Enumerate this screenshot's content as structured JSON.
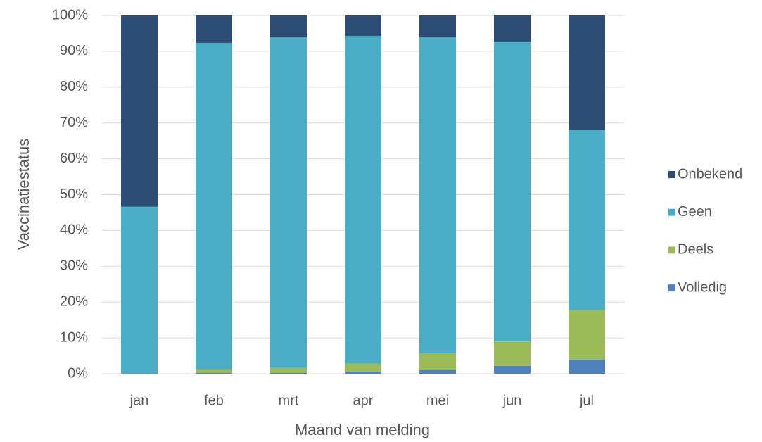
{
  "chart_data": {
    "type": "stacked_bar",
    "x_label": "Maand van melding",
    "y_label": "Vaccinatiestatus",
    "categories": [
      "jan",
      "feb",
      "mrt",
      "apr",
      "mei",
      "jun",
      "jul"
    ],
    "series": [
      {
        "name": "Volledig",
        "color": "#4f81bd",
        "values": [
          0,
          0.2,
          0.2,
          0.6,
          1.0,
          2.2,
          3.9
        ]
      },
      {
        "name": "Deels",
        "color": "#9bbb59",
        "values": [
          0,
          1.0,
          1.4,
          2.2,
          4.7,
          6.8,
          13.8
        ]
      },
      {
        "name": "Geen",
        "color": "#4bacc6",
        "values": [
          46.6,
          91.1,
          92.3,
          91.5,
          88.2,
          83.7,
          50.3
        ]
      },
      {
        "name": "Onbekend",
        "color": "#2e4d74",
        "values": [
          53.4,
          7.7,
          6.1,
          5.7,
          6.1,
          7.3,
          32.0
        ]
      }
    ],
    "ylim": [
      0,
      100
    ],
    "yticks": [
      {
        "value": 0,
        "label": "0%"
      },
      {
        "value": 10,
        "label": "10%"
      },
      {
        "value": 20,
        "label": "20%"
      },
      {
        "value": 30,
        "label": "30%"
      },
      {
        "value": 40,
        "label": "40%"
      },
      {
        "value": 50,
        "label": "50%"
      },
      {
        "value": 60,
        "label": "60%"
      },
      {
        "value": 70,
        "label": "70%"
      },
      {
        "value": 80,
        "label": "80%"
      },
      {
        "value": 90,
        "label": "90%"
      },
      {
        "value": 100,
        "label": "100%"
      }
    ],
    "grid": true,
    "legend": "right"
  }
}
